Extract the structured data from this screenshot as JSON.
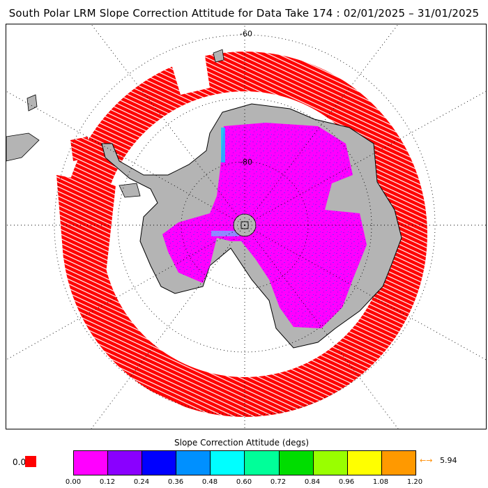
{
  "title": "South Polar LRM Slope Correction Attitude for Data Take 174 : 02/01/2025 – 31/01/2025",
  "map": {
    "lat_labels": [
      "-60",
      "-80"
    ],
    "colors": {
      "ocean": "#ffffff",
      "land": "#b4b4b4",
      "track_red": "#ff0000",
      "grid": "#000000"
    },
    "pole_hole": "no data"
  },
  "colorbar": {
    "title": "Slope Correction Attitude (degs)",
    "colors": [
      "#ff00ff",
      "#8a00ff",
      "#0000ff",
      "#0090ff",
      "#00ffff",
      "#00ff99",
      "#00dd00",
      "#99ff00",
      "#ffff00",
      "#ff9900"
    ],
    "ticks": [
      "0.00",
      "0.12",
      "0.24",
      "0.36",
      "0.48",
      "0.60",
      "0.72",
      "0.84",
      "0.96",
      "1.08",
      "1.20"
    ],
    "nodata_label": "0.0",
    "overflow_arrow": "←→",
    "overflow_value": "5.94"
  }
}
